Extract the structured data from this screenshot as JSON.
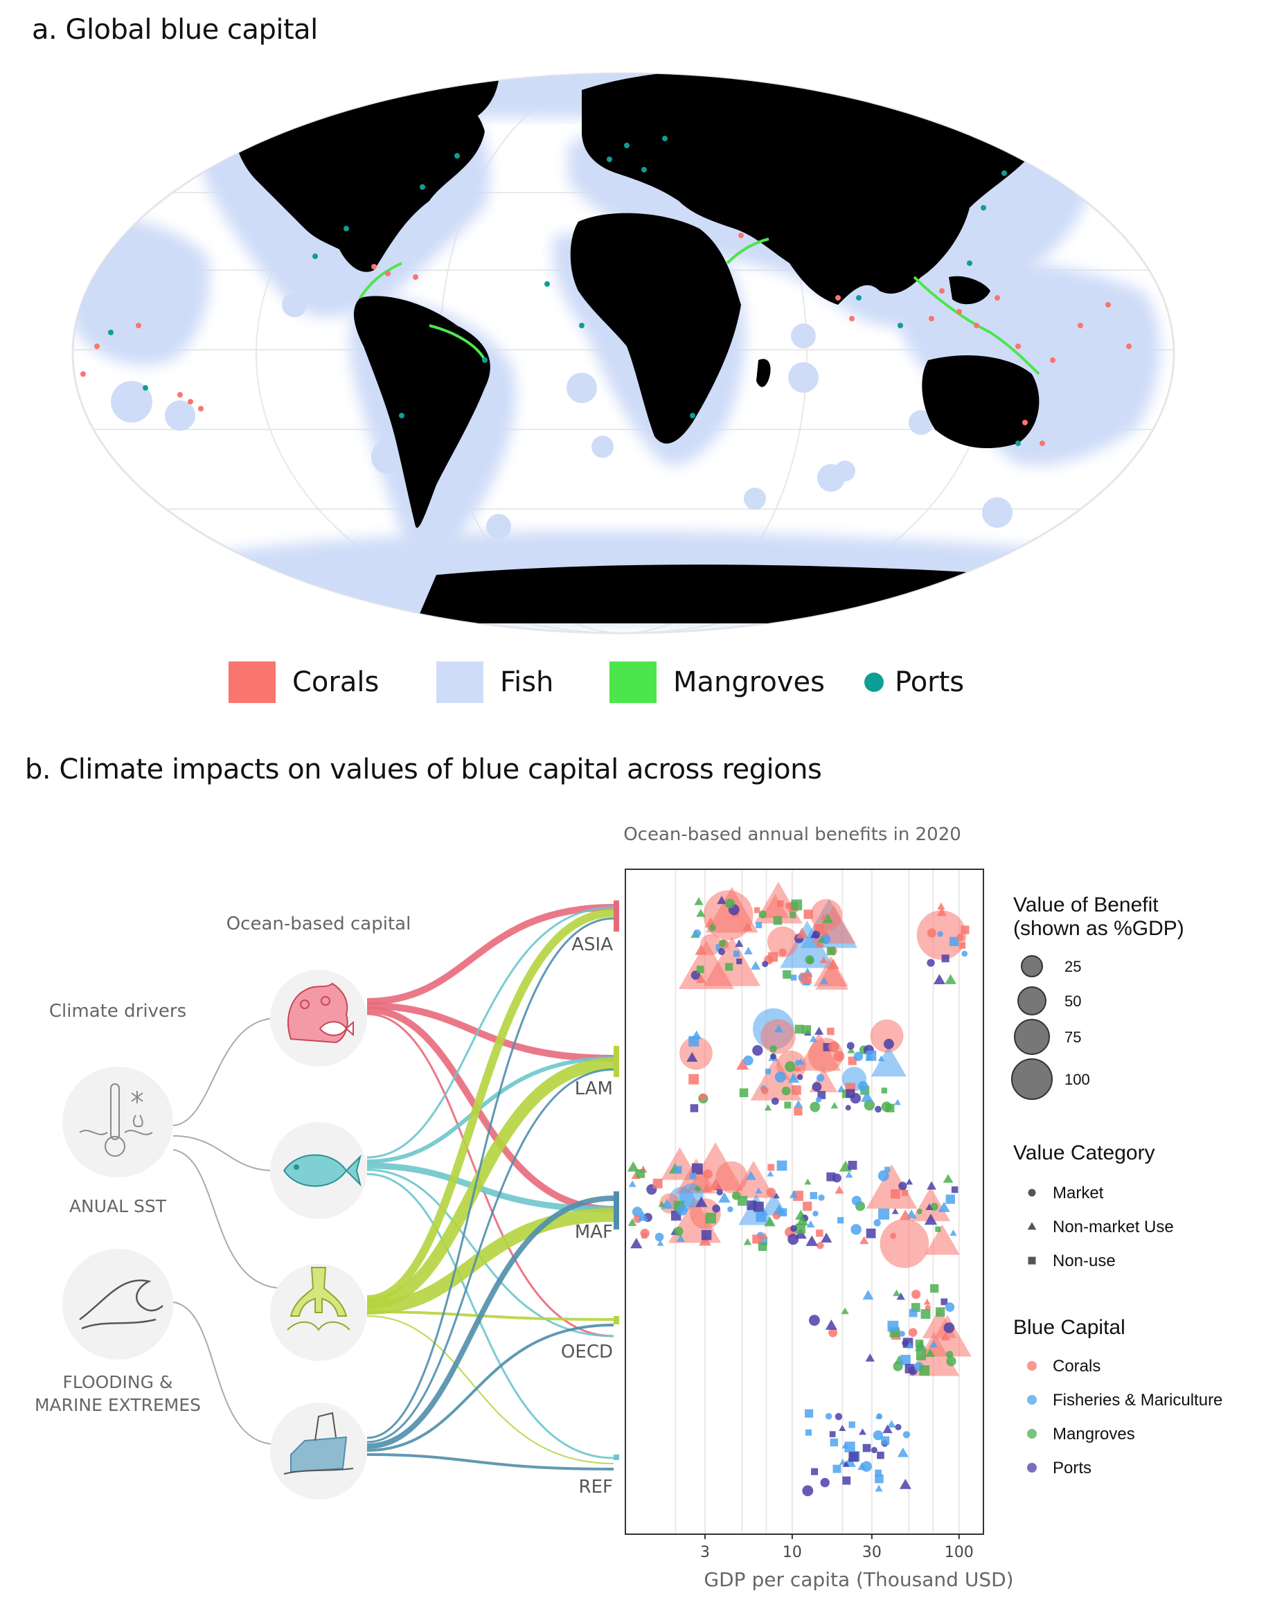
{
  "panel_a": {
    "title": "a. Global blue capital",
    "legend": [
      {
        "label": "Corals",
        "color": "#f8766d",
        "shape": "square"
      },
      {
        "label": "Fish",
        "color": "#cfdcf8",
        "shape": "square"
      },
      {
        "label": "Mangroves",
        "color": "#4ce64c",
        "shape": "square"
      },
      {
        "label": "Ports",
        "color": "#0e9e96",
        "shape": "circle"
      }
    ]
  },
  "panel_b": {
    "title": "b. Climate impacts on values of blue capital across regions",
    "sankey": {
      "drivers_title": "Climate drivers",
      "capital_title": "Ocean-based capital",
      "drivers": [
        {
          "label_lines": [
            "ANUAL SST"
          ],
          "icon": "thermometer-icon"
        },
        {
          "label_lines": [
            "FLOODING &",
            "MARINE EXTREMES"
          ],
          "icon": "wave-icon"
        }
      ],
      "capitals": [
        {
          "name": "corals",
          "icon": "coral-icon",
          "color": "#e8697b"
        },
        {
          "name": "fish",
          "icon": "fish-icon",
          "color": "#6cc7cc"
        },
        {
          "name": "mangroves",
          "icon": "mangrove-icon",
          "color": "#b5d43f"
        },
        {
          "name": "ports",
          "icon": "port-icon",
          "color": "#4f8eab"
        }
      ],
      "regions": [
        "ASIA",
        "LAM",
        "MAF",
        "OECD",
        "REF"
      ]
    }
  },
  "chart_data": {
    "type": "scatter",
    "title": "Ocean-based annual benefits in 2020",
    "xlabel": "GDP per capita (Thousand USD)",
    "x_scale": "log",
    "xlim": [
      1.0,
      140
    ],
    "x_ticks": [
      3,
      10,
      30,
      100
    ],
    "y_categories": [
      "ASIA",
      "LAM",
      "MAF",
      "OECD",
      "REF"
    ],
    "grid": "vertical",
    "legend_placement": "right",
    "size_legend": {
      "title": [
        "Value of Benefit",
        "(shown as %GDP)"
      ],
      "values": [
        25,
        50,
        75,
        100
      ]
    },
    "shape_legend": {
      "title": "Value Category",
      "entries": [
        {
          "label": "Market",
          "shape": "circle"
        },
        {
          "label": "Non-market Use",
          "shape": "triangle"
        },
        {
          "label": "Non-use",
          "shape": "square"
        }
      ]
    },
    "color_legend": {
      "title": "Blue Capital",
      "entries": [
        {
          "label": "Corals",
          "color": "#f8766d"
        },
        {
          "label": "Fisheries & Mariculture",
          "color": "#4da3f0"
        },
        {
          "label": "Mangroves",
          "color": "#4caf50"
        },
        {
          "label": "Ports",
          "color": "#4b3fa8"
        }
      ]
    },
    "clusters": [
      {
        "region": "ASIA",
        "x_range": [
          2.5,
          20
        ],
        "count": 80,
        "big": 14
      },
      {
        "region": "ASIA",
        "x_range": [
          65,
          110
        ],
        "count": 14,
        "big": 1
      },
      {
        "region": "LAM",
        "x_range": [
          5,
          45
        ],
        "count": 75,
        "big": 10
      },
      {
        "region": "LAM",
        "x_range": [
          2.5,
          3.2
        ],
        "count": 8,
        "big": 1
      },
      {
        "region": "MAF",
        "x_range": [
          1.1,
          15
        ],
        "count": 95,
        "big": 12
      },
      {
        "region": "MAF",
        "x_range": [
          15,
          100
        ],
        "count": 40,
        "big": 4
      },
      {
        "region": "OECD",
        "x_range": [
          40,
          90
        ],
        "count": 40,
        "big": 3
      },
      {
        "region": "OECD",
        "x_range": [
          13,
          30
        ],
        "count": 6,
        "big": 0
      },
      {
        "region": "REF",
        "x_range": [
          12,
          50
        ],
        "count": 40,
        "big": 0
      }
    ]
  }
}
